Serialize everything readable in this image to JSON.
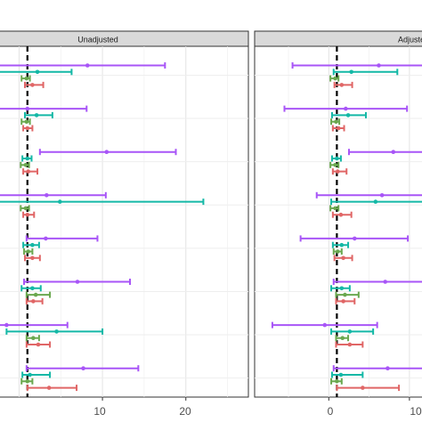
{
  "chart_data": {
    "type": "forest",
    "grid": true,
    "reference_line": 1,
    "colors": [
      "#a855f7",
      "#14b8a6",
      "#6aa84f",
      "#e06666"
    ],
    "panels": [
      {
        "strip": "Unadjusted",
        "x_ticks": [
          "10",
          "20"
        ],
        "xlim": [
          -2.5,
          27.5
        ],
        "groups": [
          [
            {
              "est": 8.2,
              "lo": -2.5,
              "hi": 17.5
            },
            {
              "est": 2.2,
              "lo": -2.5,
              "hi": 6.3
            },
            {
              "est": 0.9,
              "lo": 0.3,
              "hi": 1.3
            },
            {
              "est": 1.6,
              "lo": 0.7,
              "hi": 2.9
            }
          ],
          [
            {
              "est": 1.0,
              "lo": -2.5,
              "hi": 8.1
            },
            {
              "est": 2.1,
              "lo": 0.7,
              "hi": 4.0
            },
            {
              "est": 0.9,
              "lo": 0.3,
              "hi": 1.3
            },
            {
              "est": 1.0,
              "lo": 0.5,
              "hi": 1.6
            }
          ],
          [
            {
              "est": 10.5,
              "lo": 2.5,
              "hi": 18.8
            },
            {
              "est": 1.0,
              "lo": 0.4,
              "hi": 1.5
            },
            {
              "est": 0.8,
              "lo": 0.2,
              "hi": 1.2
            },
            {
              "est": 1.1,
              "lo": 0.5,
              "hi": 2.2
            }
          ],
          [
            {
              "est": 3.3,
              "lo": -2.5,
              "hi": 10.4
            },
            {
              "est": 4.9,
              "lo": -2.5,
              "hi": 22.1
            },
            {
              "est": 0.8,
              "lo": 0.2,
              "hi": 1.2
            },
            {
              "est": 1.0,
              "lo": 0.5,
              "hi": 1.8
            }
          ],
          [
            {
              "est": 3.2,
              "lo": 0.9,
              "hi": 9.4
            },
            {
              "est": 1.6,
              "lo": 0.5,
              "hi": 2.4
            },
            {
              "est": 1.1,
              "lo": 0.6,
              "hi": 1.6
            },
            {
              "est": 1.6,
              "lo": 0.7,
              "hi": 2.5
            }
          ],
          [
            {
              "est": 7.0,
              "lo": 0.6,
              "hi": 13.3
            },
            {
              "est": 1.6,
              "lo": 0.3,
              "hi": 2.6
            },
            {
              "est": 2.0,
              "lo": 0.9,
              "hi": 3.7
            },
            {
              "est": 1.7,
              "lo": 0.9,
              "hi": 2.8
            }
          ],
          [
            {
              "est": -1.5,
              "lo": -2.5,
              "hi": 5.8
            },
            {
              "est": 4.5,
              "lo": -1.5,
              "hi": 10.0
            },
            {
              "est": 1.7,
              "lo": 0.9,
              "hi": 2.4
            },
            {
              "est": 2.3,
              "lo": 0.9,
              "hi": 3.7
            }
          ],
          [
            {
              "est": 7.7,
              "lo": 0.9,
              "hi": 14.3
            },
            {
              "est": 1.3,
              "lo": 0.4,
              "hi": 3.7
            },
            {
              "est": 1.0,
              "lo": 0.3,
              "hi": 1.6
            },
            {
              "est": 3.6,
              "lo": 1.0,
              "hi": 6.9
            }
          ]
        ]
      },
      {
        "strip": "Adjuste",
        "x_ticks": [
          "0",
          "10"
        ],
        "xlim": [
          -9.2,
          12
        ],
        "groups": [
          [
            {
              "est": 6.2,
              "lo": -4.5,
              "hi": 12.0
            },
            {
              "est": 2.8,
              "lo": 0.6,
              "hi": 8.5
            },
            {
              "est": 0.8,
              "lo": 0.2,
              "hi": 1.2
            },
            {
              "est": 1.6,
              "lo": 0.7,
              "hi": 2.9
            }
          ],
          [
            {
              "est": 2.1,
              "lo": -5.5,
              "hi": 9.7
            },
            {
              "est": 2.4,
              "lo": 0.4,
              "hi": 4.6
            },
            {
              "est": 0.9,
              "lo": 0.3,
              "hi": 1.3
            },
            {
              "est": 1.2,
              "lo": 0.5,
              "hi": 1.9
            }
          ],
          [
            {
              "est": 8.0,
              "lo": 2.5,
              "hi": 12.0
            },
            {
              "est": 1.0,
              "lo": 0.4,
              "hi": 1.5
            },
            {
              "est": 0.8,
              "lo": 0.2,
              "hi": 1.2
            },
            {
              "est": 1.1,
              "lo": 0.5,
              "hi": 2.2
            }
          ],
          [
            {
              "est": 6.6,
              "lo": -1.5,
              "hi": 12.0
            },
            {
              "est": 5.8,
              "lo": 0.3,
              "hi": 12.0
            },
            {
              "est": 0.8,
              "lo": 0.2,
              "hi": 1.2
            },
            {
              "est": 1.5,
              "lo": 0.5,
              "hi": 2.8
            }
          ],
          [
            {
              "est": 3.2,
              "lo": -3.5,
              "hi": 9.8
            },
            {
              "est": 1.6,
              "lo": 0.5,
              "hi": 2.4
            },
            {
              "est": 1.1,
              "lo": 0.6,
              "hi": 1.6
            },
            {
              "est": 1.8,
              "lo": 0.7,
              "hi": 2.9
            }
          ],
          [
            {
              "est": 7.0,
              "lo": 0.6,
              "hi": 12.0
            },
            {
              "est": 1.6,
              "lo": 0.3,
              "hi": 2.6
            },
            {
              "est": 2.0,
              "lo": 0.9,
              "hi": 3.7
            },
            {
              "est": 1.8,
              "lo": 0.9,
              "hi": 3.2
            }
          ],
          [
            {
              "est": -0.5,
              "lo": -7.0,
              "hi": 6.0
            },
            {
              "est": 2.6,
              "lo": 0.3,
              "hi": 5.5
            },
            {
              "est": 1.7,
              "lo": 0.9,
              "hi": 2.4
            },
            {
              "est": 2.6,
              "lo": 0.9,
              "hi": 4.2
            }
          ],
          [
            {
              "est": 7.3,
              "lo": 0.6,
              "hi": 12.0
            },
            {
              "est": 1.5,
              "lo": 0.4,
              "hi": 4.2
            },
            {
              "est": 1.0,
              "lo": 0.3,
              "hi": 1.6
            },
            {
              "est": 4.2,
              "lo": 1.0,
              "hi": 8.7
            }
          ]
        ]
      }
    ]
  }
}
